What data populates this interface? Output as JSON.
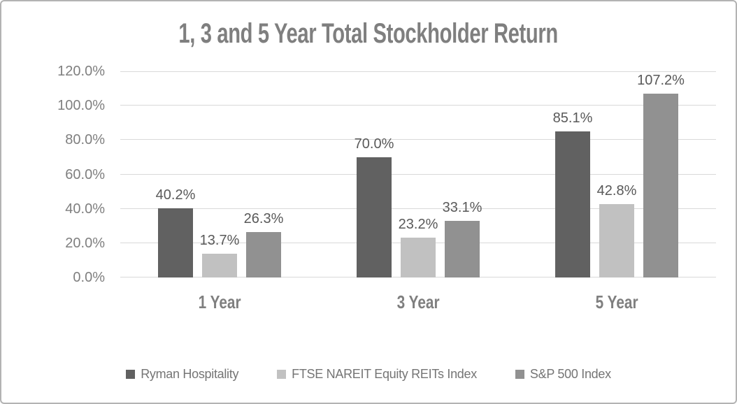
{
  "chart_data": {
    "type": "bar",
    "title": "1, 3 and 5 Year Total Stockholder Return",
    "categories": [
      "1 Year",
      "3 Year",
      "5 Year"
    ],
    "series": [
      {
        "name": "Ryman Hospitality",
        "color": "#616161",
        "values": [
          40.2,
          70.0,
          85.1
        ],
        "labels": [
          "40.2%",
          "70.0%",
          "85.1%"
        ]
      },
      {
        "name": "FTSE NAREIT Equity REITs Index",
        "color": "#c1c1c1",
        "values": [
          13.7,
          23.2,
          42.8
        ],
        "labels": [
          "13.7%",
          "23.2%",
          "42.8%"
        ]
      },
      {
        "name": "S&P 500 Index",
        "color": "#919191",
        "values": [
          26.3,
          33.1,
          107.2
        ],
        "labels": [
          "26.3%",
          "33.1%",
          "107.2%"
        ]
      }
    ],
    "y_axis": {
      "min": 0,
      "max": 120,
      "step": 20,
      "tick_labels": [
        "0.0%",
        "20.0%",
        "40.0%",
        "60.0%",
        "80.0%",
        "100.0%",
        "120.0%"
      ]
    },
    "grid": true,
    "legend_position": "bottom"
  },
  "colors": {
    "background": "#ffffff",
    "border": "#b3b3b3",
    "gridline": "#d9d9d9",
    "axis_text": "#7f7f7f",
    "data_label_text": "#595959",
    "title_text": "#7f7f7f",
    "legend_text": "#757575"
  }
}
